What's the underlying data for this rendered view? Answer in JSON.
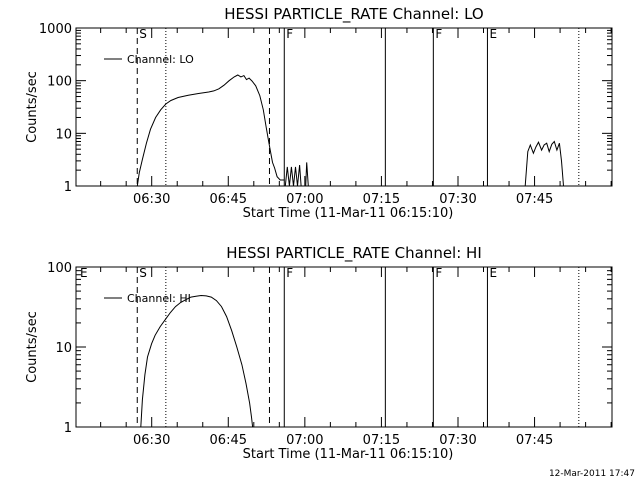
{
  "footer": {
    "timestamp": "12-Mar-2011 17:47"
  },
  "chart_data": [
    {
      "type": "line",
      "title": "HESSI PARTICLE_RATE Channel: LO",
      "xlabel": "Start Time (11-Mar-11 06:15:10)",
      "ylabel": "Counts/sec",
      "y_scale": "log",
      "ylim": [
        1,
        1000
      ],
      "y_ticks": [
        "1",
        "10",
        "100",
        "1000"
      ],
      "x_unit": "minutes since 06:15:10",
      "xlim": [
        0,
        105
      ],
      "x_ticks": [
        {
          "label": "06:30",
          "x": 14.83
        },
        {
          "label": "06:45",
          "x": 29.83
        },
        {
          "label": "07:00",
          "x": 44.83
        },
        {
          "label": "07:15",
          "x": 59.83
        },
        {
          "label": "07:30",
          "x": 74.83
        },
        {
          "label": "07:45",
          "x": 89.83
        }
      ],
      "grid": false,
      "legend": {
        "position": "top-left",
        "entries": [
          "Channel: LO"
        ]
      },
      "markers": [
        {
          "x": 12.0,
          "style": "dashed",
          "label": "S"
        },
        {
          "x": 17.6,
          "style": "dotted",
          "label": ""
        },
        {
          "x": 37.9,
          "style": "dashed",
          "label": ""
        },
        {
          "x": 40.8,
          "style": "solid",
          "label": "F"
        },
        {
          "x": 60.6,
          "style": "solid",
          "label": ""
        },
        {
          "x": 70.0,
          "style": "solid",
          "label": "F"
        },
        {
          "x": 80.6,
          "style": "solid",
          "label": "E"
        },
        {
          "x": 98.5,
          "style": "dotted",
          "label": ""
        }
      ],
      "segments": [
        [
          [
            12.0,
            1.0
          ],
          [
            12.4,
            1.8
          ],
          [
            13.0,
            3.2
          ],
          [
            13.8,
            6.5
          ],
          [
            14.6,
            12
          ],
          [
            15.6,
            20
          ],
          [
            16.6,
            28
          ],
          [
            17.6,
            36
          ],
          [
            18.6,
            42
          ],
          [
            20.0,
            48
          ],
          [
            22.0,
            53
          ],
          [
            24.0,
            57
          ],
          [
            26.0,
            61
          ],
          [
            27.0,
            64
          ],
          [
            28.0,
            70
          ],
          [
            29.0,
            82
          ],
          [
            30.0,
            100
          ],
          [
            31.0,
            118
          ],
          [
            31.7,
            128
          ],
          [
            32.3,
            118
          ],
          [
            32.9,
            125
          ],
          [
            33.4,
            105
          ],
          [
            33.9,
            112
          ],
          [
            34.5,
            98
          ],
          [
            35.2,
            80
          ],
          [
            36.0,
            52
          ],
          [
            36.7,
            28
          ],
          [
            37.2,
            14
          ],
          [
            37.7,
            7.5
          ],
          [
            38.1,
            4.5
          ],
          [
            38.5,
            2.8
          ],
          [
            38.9,
            2.2
          ],
          [
            39.4,
            1.5
          ],
          [
            40.0,
            1.3
          ],
          [
            40.8,
            1.3
          ]
        ],
        [
          [
            41.0,
            1.0
          ],
          [
            41.4,
            2.3
          ],
          [
            41.8,
            1.0
          ],
          [
            42.2,
            2.3
          ],
          [
            42.6,
            1.0
          ],
          [
            43.0,
            2.3
          ],
          [
            43.4,
            1.0
          ],
          [
            43.8,
            2.5
          ],
          [
            44.1,
            1.0
          ]
        ],
        [
          [
            45.0,
            1.0
          ],
          [
            45.2,
            2.8
          ],
          [
            45.5,
            1.0
          ]
        ],
        [
          [
            88.0,
            1.0
          ],
          [
            88.5,
            4.5
          ],
          [
            89.0,
            6.0
          ],
          [
            89.6,
            4.2
          ],
          [
            90.1,
            5.5
          ],
          [
            90.6,
            6.8
          ],
          [
            91.2,
            4.8
          ],
          [
            91.7,
            6.0
          ],
          [
            92.2,
            6.5
          ],
          [
            92.7,
            4.5
          ],
          [
            93.2,
            6.2
          ],
          [
            93.7,
            7.0
          ],
          [
            94.2,
            4.8
          ],
          [
            94.7,
            6.5
          ],
          [
            95.1,
            3.0
          ],
          [
            95.5,
            1.0
          ]
        ]
      ]
    },
    {
      "type": "line",
      "title": "HESSI PARTICLE_RATE Channel: HI",
      "xlabel": "Start Time (11-Mar-11 06:15:10)",
      "ylabel": "Counts/sec",
      "y_scale": "log",
      "ylim": [
        1,
        100
      ],
      "y_ticks": [
        "1",
        "10",
        "100"
      ],
      "x_unit": "minutes since 06:15:10",
      "xlim": [
        0,
        105
      ],
      "x_ticks": [
        {
          "label": "06:30",
          "x": 14.83
        },
        {
          "label": "06:45",
          "x": 29.83
        },
        {
          "label": "07:00",
          "x": 44.83
        },
        {
          "label": "07:15",
          "x": 59.83
        },
        {
          "label": "07:30",
          "x": 74.83
        },
        {
          "label": "07:45",
          "x": 89.83
        }
      ],
      "grid": false,
      "legend": {
        "position": "top-left",
        "entries": [
          "Channel: HI"
        ]
      },
      "markers": [
        {
          "x": 0.4,
          "style": "none",
          "label": "E"
        },
        {
          "x": 12.0,
          "style": "dashed",
          "label": "S"
        },
        {
          "x": 17.6,
          "style": "dotted",
          "label": ""
        },
        {
          "x": 37.9,
          "style": "dashed",
          "label": ""
        },
        {
          "x": 40.8,
          "style": "solid",
          "label": "F"
        },
        {
          "x": 60.6,
          "style": "solid",
          "label": ""
        },
        {
          "x": 70.0,
          "style": "solid",
          "label": "F"
        },
        {
          "x": 80.6,
          "style": "solid",
          "label": "E"
        },
        {
          "x": 98.5,
          "style": "dotted",
          "label": ""
        }
      ],
      "segments": [
        [
          [
            12.7,
            1.0
          ],
          [
            13.0,
            2.2
          ],
          [
            13.5,
            4.5
          ],
          [
            14.0,
            7.5
          ],
          [
            14.8,
            11
          ],
          [
            15.5,
            14
          ],
          [
            16.5,
            18
          ],
          [
            17.5,
            22
          ],
          [
            18.5,
            27
          ],
          [
            19.5,
            32
          ],
          [
            20.5,
            36
          ],
          [
            21.5,
            39
          ],
          [
            22.5,
            42
          ],
          [
            23.5,
            43
          ],
          [
            24.5,
            44
          ],
          [
            25.5,
            43.5
          ],
          [
            26.5,
            42
          ],
          [
            27.5,
            38
          ],
          [
            28.5,
            32
          ],
          [
            29.5,
            24
          ],
          [
            30.5,
            16
          ],
          [
            31.5,
            10
          ],
          [
            32.5,
            6
          ],
          [
            33.3,
            3.5
          ],
          [
            34.0,
            2.0
          ],
          [
            34.4,
            1.3
          ],
          [
            34.6,
            1.0
          ]
        ]
      ]
    }
  ]
}
